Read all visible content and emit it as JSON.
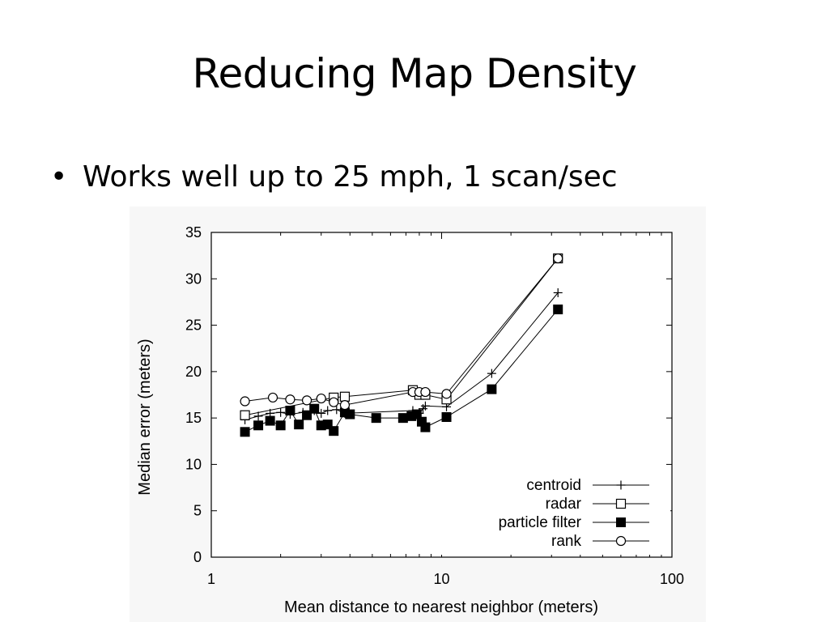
{
  "slide": {
    "title": "Reducing Map Density",
    "bullet_marker": "•",
    "bullet": "Works well up to 25 mph, 1 scan/sec"
  },
  "chart_data": {
    "type": "line",
    "title": "",
    "xlabel": "Mean distance to nearest neighbor (meters)",
    "ylabel": "Median error (meters)",
    "xscale": "log",
    "xlim": [
      1,
      100
    ],
    "ylim": [
      0,
      35
    ],
    "xticks": [
      1,
      10,
      100
    ],
    "yticks": [
      0,
      5,
      10,
      15,
      20,
      25,
      30,
      35
    ],
    "grid": false,
    "legend_position": "bottom-right",
    "series": [
      {
        "name": "centroid",
        "marker": "plus",
        "x": [
          1.4,
          1.6,
          1.8,
          2.0,
          2.2,
          2.5,
          2.8,
          3.0,
          3.2,
          3.5,
          3.8,
          7.5,
          8.0,
          8.3,
          8.5,
          10.5,
          16.5,
          32
        ],
        "y": [
          14.8,
          15.2,
          15.5,
          15.6,
          15.4,
          15.6,
          15.8,
          15.5,
          15.8,
          15.9,
          15.5,
          15.8,
          15.5,
          16.0,
          16.3,
          16.2,
          19.8,
          28.5
        ]
      },
      {
        "name": "radar",
        "marker": "open-square",
        "x": [
          1.4,
          3.4,
          3.8,
          7.5,
          8.0,
          8.5,
          10.5,
          32
        ],
        "y": [
          15.3,
          17.2,
          17.3,
          18.0,
          17.5,
          17.5,
          17.0,
          32.2
        ]
      },
      {
        "name": "particle filter",
        "marker": "filled-square",
        "x": [
          1.4,
          1.6,
          1.8,
          2.0,
          2.2,
          2.4,
          2.6,
          2.8,
          3.0,
          3.2,
          3.4,
          3.8,
          4.0,
          5.2,
          6.8,
          7.4,
          7.8,
          8.2,
          8.5,
          10.5,
          16.5,
          32
        ],
        "y": [
          13.5,
          14.2,
          14.7,
          14.2,
          15.8,
          14.3,
          15.3,
          16.0,
          14.2,
          14.3,
          13.6,
          15.6,
          15.4,
          15.0,
          15.0,
          15.2,
          15.4,
          14.6,
          14.0,
          15.1,
          18.1,
          26.7
        ]
      },
      {
        "name": "rank",
        "marker": "open-circle",
        "x": [
          1.4,
          1.85,
          2.2,
          2.6,
          3.0,
          3.4,
          3.8,
          7.5,
          8.0,
          8.5,
          10.5,
          32
        ],
        "y": [
          16.8,
          17.2,
          17.0,
          16.9,
          17.1,
          16.7,
          16.4,
          17.8,
          17.8,
          17.8,
          17.6,
          32.2
        ]
      }
    ]
  }
}
